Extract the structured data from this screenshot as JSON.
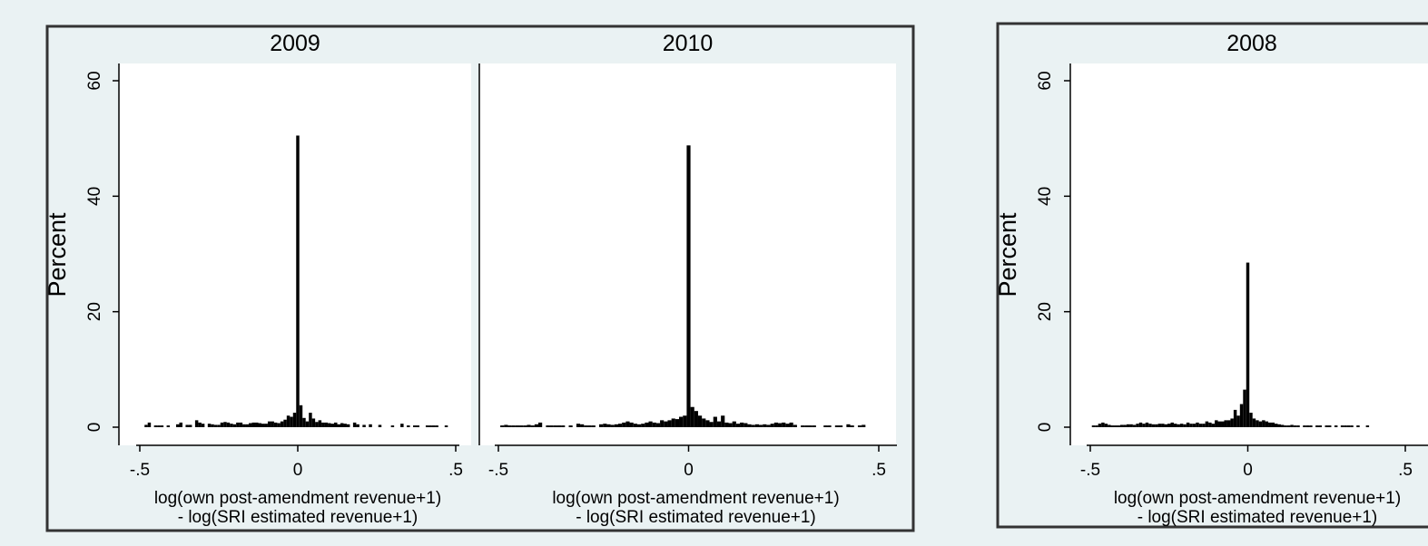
{
  "chart_data": [
    {
      "type": "bar",
      "figure_group": "left",
      "ylabel": "Percent",
      "ylim": [
        0,
        62
      ],
      "yticks": [
        "0",
        "20",
        "40",
        "60"
      ],
      "xlim": [
        -0.55,
        0.55
      ],
      "xticks": [
        {
          "v": -0.5,
          "label": "-.5"
        },
        {
          "v": 0,
          "label": "0"
        },
        {
          "v": 0.5,
          "label": ".5"
        }
      ],
      "xlabel_line1": "log(own post-amendment revenue+1)",
      "xlabel_line2": "- log(SRI estimated revenue+1)",
      "bin_width": 0.01,
      "grid": false,
      "panels": [
        {
          "title": "2009",
          "bins": [
            [
              -0.48,
              0.4
            ],
            [
              -0.47,
              0.8
            ],
            [
              -0.45,
              0.3
            ],
            [
              -0.44,
              0.3
            ],
            [
              -0.43,
              0.3
            ],
            [
              -0.41,
              0.3
            ],
            [
              -0.38,
              0.5
            ],
            [
              -0.37,
              0.8
            ],
            [
              -0.35,
              0.4
            ],
            [
              -0.34,
              0.4
            ],
            [
              -0.32,
              1.2
            ],
            [
              -0.31,
              0.8
            ],
            [
              -0.3,
              0.6
            ],
            [
              -0.28,
              0.6
            ],
            [
              -0.27,
              0.5
            ],
            [
              -0.26,
              0.4
            ],
            [
              -0.25,
              0.4
            ],
            [
              -0.24,
              0.8
            ],
            [
              -0.23,
              0.9
            ],
            [
              -0.22,
              0.8
            ],
            [
              -0.21,
              0.6
            ],
            [
              -0.2,
              0.5
            ],
            [
              -0.19,
              0.8
            ],
            [
              -0.18,
              0.8
            ],
            [
              -0.17,
              0.5
            ],
            [
              -0.16,
              0.5
            ],
            [
              -0.15,
              0.7
            ],
            [
              -0.14,
              0.8
            ],
            [
              -0.13,
              0.8
            ],
            [
              -0.12,
              0.7
            ],
            [
              -0.11,
              0.6
            ],
            [
              -0.1,
              0.6
            ],
            [
              -0.09,
              1.0
            ],
            [
              -0.08,
              1.0
            ],
            [
              -0.07,
              0.8
            ],
            [
              -0.06,
              0.7
            ],
            [
              -0.05,
              1.0
            ],
            [
              -0.04,
              1.3
            ],
            [
              -0.03,
              2.0
            ],
            [
              -0.02,
              1.8
            ],
            [
              -0.01,
              2.5
            ],
            [
              0.0,
              50.5
            ],
            [
              0.01,
              3.8
            ],
            [
              0.02,
              1.6
            ],
            [
              0.03,
              1.0
            ],
            [
              0.04,
              2.5
            ],
            [
              0.05,
              1.5
            ],
            [
              0.06,
              0.9
            ],
            [
              0.07,
              1.2
            ],
            [
              0.08,
              0.8
            ],
            [
              0.09,
              0.8
            ],
            [
              0.1,
              0.7
            ],
            [
              0.11,
              0.6
            ],
            [
              0.12,
              0.8
            ],
            [
              0.13,
              0.5
            ],
            [
              0.14,
              0.7
            ],
            [
              0.15,
              0.6
            ],
            [
              0.16,
              0.5
            ],
            [
              0.18,
              0.8
            ],
            [
              0.19,
              0.5
            ],
            [
              0.21,
              0.4
            ],
            [
              0.23,
              0.5
            ],
            [
              0.26,
              0.4
            ],
            [
              0.3,
              0.3
            ],
            [
              0.33,
              0.6
            ],
            [
              0.35,
              0.3
            ],
            [
              0.37,
              0.3
            ],
            [
              0.38,
              0.3
            ],
            [
              0.41,
              0.3
            ],
            [
              0.42,
              0.3
            ],
            [
              0.43,
              0.3
            ],
            [
              0.44,
              0.3
            ],
            [
              0.47,
              0.3
            ]
          ]
        },
        {
          "title": "2010",
          "bins": [
            [
              -0.49,
              0.3
            ],
            [
              -0.48,
              0.4
            ],
            [
              -0.47,
              0.3
            ],
            [
              -0.46,
              0.3
            ],
            [
              -0.45,
              0.3
            ],
            [
              -0.44,
              0.3
            ],
            [
              -0.43,
              0.3
            ],
            [
              -0.42,
              0.4
            ],
            [
              -0.41,
              0.3
            ],
            [
              -0.4,
              0.5
            ],
            [
              -0.39,
              0.8
            ],
            [
              -0.37,
              0.3
            ],
            [
              -0.36,
              0.3
            ],
            [
              -0.35,
              0.3
            ],
            [
              -0.34,
              0.3
            ],
            [
              -0.33,
              0.3
            ],
            [
              -0.31,
              0.3
            ],
            [
              -0.29,
              0.6
            ],
            [
              -0.28,
              0.5
            ],
            [
              -0.27,
              0.3
            ],
            [
              -0.26,
              0.3
            ],
            [
              -0.25,
              0.3
            ],
            [
              -0.23,
              0.5
            ],
            [
              -0.22,
              0.6
            ],
            [
              -0.21,
              0.5
            ],
            [
              -0.2,
              0.4
            ],
            [
              -0.19,
              0.5
            ],
            [
              -0.18,
              0.6
            ],
            [
              -0.17,
              0.8
            ],
            [
              -0.16,
              1.0
            ],
            [
              -0.15,
              0.8
            ],
            [
              -0.14,
              0.6
            ],
            [
              -0.13,
              0.5
            ],
            [
              -0.12,
              0.6
            ],
            [
              -0.11,
              0.8
            ],
            [
              -0.1,
              1.0
            ],
            [
              -0.09,
              0.8
            ],
            [
              -0.08,
              0.7
            ],
            [
              -0.07,
              1.2
            ],
            [
              -0.06,
              1.0
            ],
            [
              -0.05,
              1.2
            ],
            [
              -0.04,
              1.5
            ],
            [
              -0.03,
              1.4
            ],
            [
              -0.02,
              1.8
            ],
            [
              -0.01,
              2.0
            ],
            [
              0.0,
              48.8
            ],
            [
              0.01,
              3.5
            ],
            [
              0.02,
              2.8
            ],
            [
              0.03,
              2.0
            ],
            [
              0.04,
              1.5
            ],
            [
              0.05,
              1.2
            ],
            [
              0.06,
              0.9
            ],
            [
              0.07,
              1.8
            ],
            [
              0.08,
              1.0
            ],
            [
              0.09,
              2.0
            ],
            [
              0.1,
              0.8
            ],
            [
              0.11,
              0.7
            ],
            [
              0.12,
              1.0
            ],
            [
              0.13,
              0.6
            ],
            [
              0.14,
              0.8
            ],
            [
              0.15,
              0.7
            ],
            [
              0.16,
              0.5
            ],
            [
              0.17,
              0.4
            ],
            [
              0.18,
              0.5
            ],
            [
              0.19,
              0.4
            ],
            [
              0.2,
              0.5
            ],
            [
              0.21,
              0.4
            ],
            [
              0.22,
              0.6
            ],
            [
              0.23,
              0.8
            ],
            [
              0.24,
              0.7
            ],
            [
              0.25,
              0.8
            ],
            [
              0.26,
              0.6
            ],
            [
              0.27,
              0.8
            ],
            [
              0.28,
              0.4
            ],
            [
              0.3,
              0.3
            ],
            [
              0.31,
              0.3
            ],
            [
              0.32,
              0.3
            ],
            [
              0.33,
              0.3
            ],
            [
              0.36,
              0.3
            ],
            [
              0.37,
              0.3
            ],
            [
              0.39,
              0.3
            ],
            [
              0.4,
              0.3
            ],
            [
              0.42,
              0.5
            ],
            [
              0.43,
              0.3
            ],
            [
              0.45,
              0.3
            ],
            [
              0.46,
              0.4
            ]
          ]
        }
      ]
    },
    {
      "type": "bar",
      "figure_group": "right",
      "ylabel": "Percent",
      "ylim": [
        0,
        62
      ],
      "yticks": [
        "0",
        "20",
        "40",
        "60"
      ],
      "xlim": [
        -0.55,
        0.55
      ],
      "xticks": [
        {
          "v": -0.5,
          "label": "-.5"
        },
        {
          "v": 0,
          "label": "0"
        },
        {
          "v": 0.5,
          "label": ".5"
        }
      ],
      "xlabel_line1": "log(own post-amendment revenue+1)",
      "xlabel_line2": "- log(SRI estimated revenue+1)",
      "bin_width": 0.01,
      "grid": false,
      "panels": [
        {
          "title": "2008",
          "bins": [
            [
              -0.49,
              0.3
            ],
            [
              -0.48,
              0.3
            ],
            [
              -0.47,
              0.6
            ],
            [
              -0.46,
              0.8
            ],
            [
              -0.45,
              0.6
            ],
            [
              -0.44,
              0.4
            ],
            [
              -0.43,
              0.3
            ],
            [
              -0.42,
              0.3
            ],
            [
              -0.41,
              0.3
            ],
            [
              -0.4,
              0.4
            ],
            [
              -0.39,
              0.4
            ],
            [
              -0.38,
              0.5
            ],
            [
              -0.37,
              0.5
            ],
            [
              -0.36,
              0.4
            ],
            [
              -0.35,
              0.6
            ],
            [
              -0.34,
              0.8
            ],
            [
              -0.33,
              0.6
            ],
            [
              -0.32,
              0.8
            ],
            [
              -0.31,
              0.6
            ],
            [
              -0.3,
              0.5
            ],
            [
              -0.29,
              0.5
            ],
            [
              -0.28,
              0.6
            ],
            [
              -0.27,
              0.6
            ],
            [
              -0.26,
              0.5
            ],
            [
              -0.25,
              0.6
            ],
            [
              -0.24,
              0.8
            ],
            [
              -0.23,
              0.6
            ],
            [
              -0.22,
              0.5
            ],
            [
              -0.21,
              0.6
            ],
            [
              -0.2,
              0.5
            ],
            [
              -0.19,
              0.8
            ],
            [
              -0.18,
              0.6
            ],
            [
              -0.17,
              0.6
            ],
            [
              -0.16,
              0.8
            ],
            [
              -0.15,
              0.6
            ],
            [
              -0.14,
              0.6
            ],
            [
              -0.13,
              1.0
            ],
            [
              -0.12,
              0.8
            ],
            [
              -0.11,
              0.6
            ],
            [
              -0.1,
              1.2
            ],
            [
              -0.09,
              1.0
            ],
            [
              -0.08,
              1.0
            ],
            [
              -0.07,
              1.2
            ],
            [
              -0.06,
              1.2
            ],
            [
              -0.05,
              1.5
            ],
            [
              -0.04,
              3.0
            ],
            [
              -0.03,
              2.0
            ],
            [
              -0.02,
              4.0
            ],
            [
              -0.01,
              6.5
            ],
            [
              0.0,
              28.5
            ],
            [
              0.01,
              2.5
            ],
            [
              0.02,
              1.5
            ],
            [
              0.03,
              1.2
            ],
            [
              0.04,
              1.0
            ],
            [
              0.05,
              1.2
            ],
            [
              0.06,
              1.0
            ],
            [
              0.07,
              0.8
            ],
            [
              0.08,
              0.8
            ],
            [
              0.09,
              0.6
            ],
            [
              0.1,
              0.5
            ],
            [
              0.11,
              0.4
            ],
            [
              0.12,
              0.3
            ],
            [
              0.13,
              0.3
            ],
            [
              0.14,
              0.4
            ],
            [
              0.15,
              0.3
            ],
            [
              0.16,
              0.3
            ],
            [
              0.18,
              0.3
            ],
            [
              0.19,
              0.3
            ],
            [
              0.2,
              0.3
            ],
            [
              0.22,
              0.3
            ],
            [
              0.23,
              0.3
            ],
            [
              0.25,
              0.3
            ],
            [
              0.26,
              0.3
            ],
            [
              0.28,
              0.3
            ],
            [
              0.3,
              0.3
            ],
            [
              0.31,
              0.3
            ],
            [
              0.32,
              0.3
            ],
            [
              0.33,
              0.3
            ],
            [
              0.35,
              0.3
            ],
            [
              0.38,
              0.3
            ]
          ]
        }
      ]
    }
  ]
}
